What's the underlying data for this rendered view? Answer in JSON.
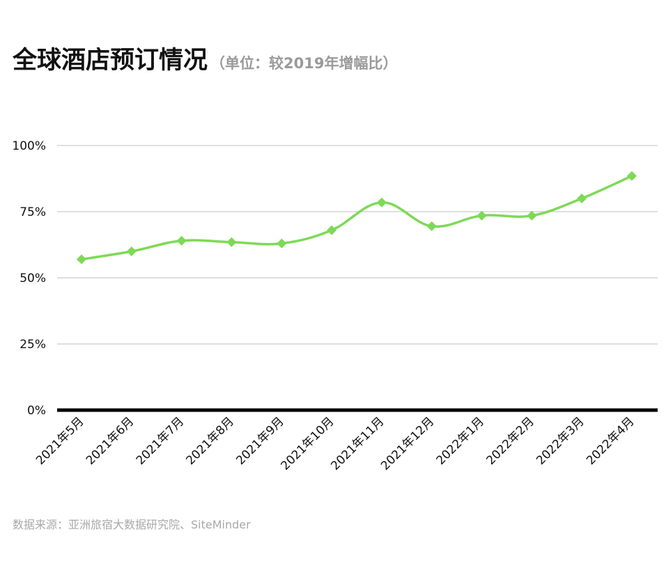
{
  "title": "全球酒店预订情况",
  "subtitle": "（单位：较2019年增幅比）",
  "source": "数据来源：亚洲旅宿大数据研究院、SiteMinder",
  "colors": {
    "line": "#7ed957",
    "grid": "#cccccc",
    "baseline": "#000000",
    "text": "#111111"
  },
  "chart_data": {
    "type": "line",
    "categories": [
      "2021年5月",
      "2021年6月",
      "2021年7月",
      "2021年8月",
      "2021年9月",
      "2021年10月",
      "2021年11月",
      "2021年12月",
      "2022年1月",
      "2022年2月",
      "2022年3月",
      "2022年4月"
    ],
    "series": [
      {
        "values": [
          57,
          60,
          64,
          63.5,
          63,
          68,
          78.5,
          69.5,
          73.5,
          73.5,
          80,
          88.5
        ]
      }
    ],
    "yticks": [
      "0%",
      "25%",
      "50%",
      "75%",
      "100%"
    ],
    "ylim": [
      0,
      100
    ],
    "marker": "diamond",
    "smooth": true,
    "grid": true
  }
}
